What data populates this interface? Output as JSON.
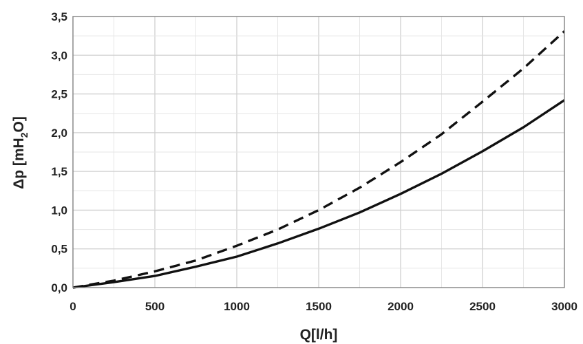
{
  "chart_data": {
    "type": "line",
    "xlabel": "Q[l/h]",
    "ylabel": {
      "main": "Δp [mH",
      "sub": "2",
      "tail": "O]"
    },
    "xlim": [
      0,
      3000
    ],
    "ylim": [
      0,
      3.5
    ],
    "x_ticks": [
      "0",
      "500",
      "1000",
      "1500",
      "2000",
      "2500",
      "3000"
    ],
    "y_ticks": [
      "0,0",
      "0,5",
      "1,0",
      "1,5",
      "2,0",
      "2,5",
      "3,0",
      "3,5"
    ],
    "grid": true,
    "legend": "none",
    "series": [
      {
        "style": "solid",
        "color": "#111111",
        "x": [
          0,
          250,
          500,
          750,
          1000,
          1250,
          1500,
          1750,
          2000,
          2250,
          2500,
          2750,
          3000
        ],
        "y": [
          0.0,
          0.07,
          0.15,
          0.27,
          0.4,
          0.57,
          0.76,
          0.97,
          1.21,
          1.47,
          1.76,
          2.07,
          2.42
        ]
      },
      {
        "style": "dashed",
        "color": "#111111",
        "x": [
          0,
          250,
          500,
          750,
          1000,
          1250,
          1500,
          1750,
          2000,
          2250,
          2500,
          2750,
          3000
        ],
        "y": [
          0.0,
          0.09,
          0.21,
          0.35,
          0.54,
          0.75,
          1.0,
          1.29,
          1.62,
          1.98,
          2.4,
          2.83,
          3.31
        ]
      }
    ]
  }
}
